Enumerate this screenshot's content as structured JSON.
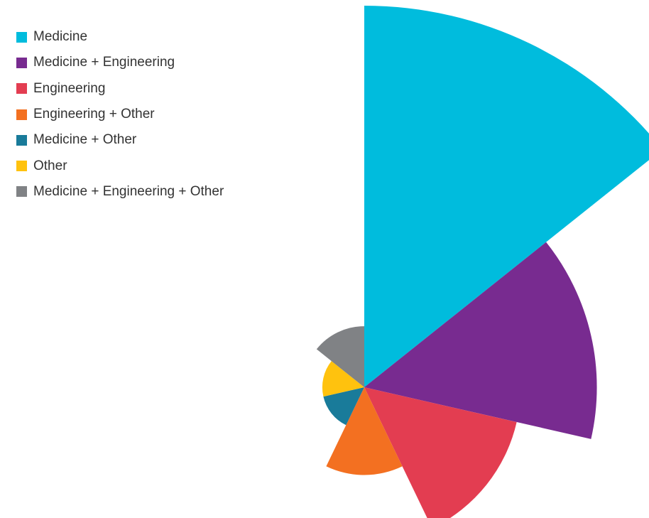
{
  "chart_data": {
    "type": "polar-area",
    "title": "",
    "legend_position": "top-left",
    "value_scale": "relative radius (largest = 1.0)",
    "slices": [
      {
        "name": "Medicine",
        "color": "#00BCDD",
        "value": 1.0
      },
      {
        "name": "Medicine + Engineering",
        "color": "#782B90",
        "value": 0.61
      },
      {
        "name": "Engineering",
        "color": "#E33D51",
        "value": 0.41
      },
      {
        "name": "Engineering + Other",
        "color": "#F37021",
        "value": 0.23
      },
      {
        "name": "Medicine + Other",
        "color": "#197B9A",
        "value": 0.11
      },
      {
        "name": "Other",
        "color": "#FFC20E",
        "value": 0.11
      },
      {
        "name": "Medicine + Engineering + Other",
        "color": "#808285",
        "value": 0.16
      }
    ]
  }
}
